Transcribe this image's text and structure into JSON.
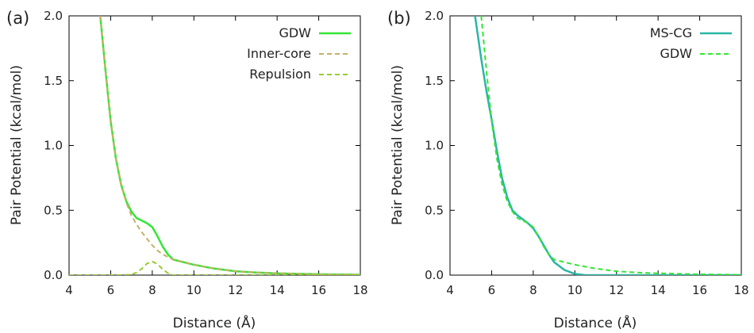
{
  "chart_data": [
    {
      "type": "line",
      "panel_label": "(a)",
      "xlabel": "Distance (Å)",
      "ylabel": "Pair Potential (kcal/mol)",
      "xlim": [
        4,
        18
      ],
      "ylim": [
        0,
        2
      ],
      "xticks": [
        "4",
        "6",
        "8",
        "10",
        "12",
        "14",
        "16",
        "18"
      ],
      "yticks": [
        "0.0",
        "0.5",
        "1.0",
        "1.5",
        "2.0"
      ],
      "grid": false,
      "legend_position": "top-right",
      "series": [
        {
          "name": "GDW",
          "color": "#33e633",
          "style": "solid",
          "x": [
            5.5,
            5.75,
            6.0,
            6.25,
            6.5,
            6.75,
            7.0,
            7.25,
            7.5,
            7.75,
            8.0,
            8.25,
            8.5,
            8.75,
            9.0,
            9.5,
            10.0,
            11.0,
            12.0,
            13.0,
            14.0,
            16.0,
            18.0
          ],
          "y": [
            2.0,
            1.58,
            1.19,
            0.9,
            0.7,
            0.57,
            0.49,
            0.44,
            0.42,
            0.4,
            0.37,
            0.3,
            0.22,
            0.16,
            0.12,
            0.1,
            0.08,
            0.05,
            0.03,
            0.02,
            0.014,
            0.007,
            0.003
          ]
        },
        {
          "name": "Inner-core",
          "color": "#c2b266",
          "style": "dashed",
          "x": [
            5.5,
            5.75,
            6.0,
            6.25,
            6.5,
            6.75,
            7.0,
            7.25,
            7.5,
            7.75,
            8.0,
            8.25,
            8.5,
            8.75,
            9.0,
            9.5,
            10.0,
            11.0,
            12.0,
            13.0,
            14.0,
            16.0,
            18.0
          ],
          "y": [
            2.0,
            1.58,
            1.19,
            0.9,
            0.7,
            0.56,
            0.46,
            0.39,
            0.33,
            0.28,
            0.23,
            0.19,
            0.16,
            0.14,
            0.12,
            0.1,
            0.08,
            0.05,
            0.03,
            0.02,
            0.014,
            0.007,
            0.003
          ]
        },
        {
          "name": "Repulsion",
          "color": "#99cc33",
          "style": "dashed",
          "x": [
            4.0,
            6.5,
            7.0,
            7.25,
            7.5,
            7.75,
            8.0,
            8.25,
            8.5,
            8.75,
            9.0,
            18.0
          ],
          "y": [
            0.0,
            0.0,
            0.005,
            0.02,
            0.05,
            0.09,
            0.105,
            0.085,
            0.045,
            0.015,
            0.0,
            0.0
          ]
        }
      ]
    },
    {
      "type": "line",
      "panel_label": "(b)",
      "xlabel": "Distance (Å)",
      "ylabel": "Pair Potential (kcal/mol)",
      "xlim": [
        4,
        18
      ],
      "ylim": [
        0,
        2
      ],
      "xticks": [
        "4",
        "6",
        "8",
        "10",
        "12",
        "14",
        "16",
        "18"
      ],
      "yticks": [
        "0.0",
        "0.5",
        "1.0",
        "1.5",
        "2.0"
      ],
      "grid": false,
      "legend_position": "top-right",
      "series": [
        {
          "name": "MS-CG",
          "color": "#2ab5a5",
          "style": "solid",
          "x": [
            5.2,
            5.5,
            5.75,
            6.0,
            6.25,
            6.5,
            6.75,
            7.0,
            7.25,
            7.5,
            7.75,
            8.0,
            8.25,
            8.5,
            8.75,
            9.0,
            9.5,
            10.0,
            10.5,
            11.0,
            12.0,
            14.0,
            18.0
          ],
          "y": [
            2.0,
            1.67,
            1.42,
            1.2,
            0.96,
            0.75,
            0.6,
            0.5,
            0.46,
            0.43,
            0.4,
            0.36,
            0.3,
            0.23,
            0.16,
            0.1,
            0.04,
            0.01,
            0.0,
            0.0,
            0.0,
            0.0,
            0.0
          ]
        },
        {
          "name": "GDW",
          "color": "#33e633",
          "style": "dashed",
          "x": [
            5.5,
            5.75,
            6.0,
            6.25,
            6.5,
            6.75,
            7.0,
            7.25,
            7.5,
            7.75,
            8.0,
            8.25,
            8.5,
            8.75,
            9.0,
            9.5,
            10.0,
            11.0,
            12.0,
            13.0,
            14.0,
            16.0,
            18.0
          ],
          "y": [
            2.0,
            1.58,
            1.19,
            0.9,
            0.7,
            0.57,
            0.49,
            0.44,
            0.42,
            0.4,
            0.37,
            0.3,
            0.22,
            0.16,
            0.12,
            0.1,
            0.08,
            0.05,
            0.03,
            0.02,
            0.014,
            0.007,
            0.003
          ]
        }
      ]
    }
  ]
}
